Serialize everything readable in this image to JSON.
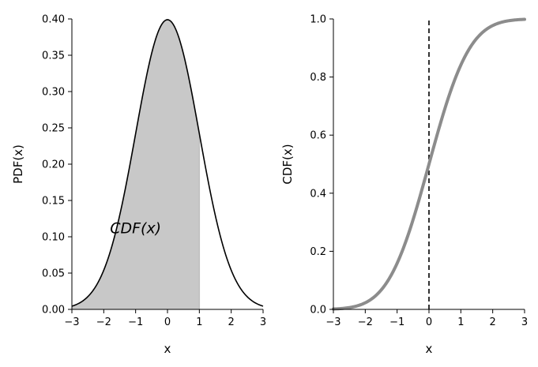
{
  "chart_data": [
    {
      "type": "area",
      "function": "standard normal probability density",
      "x_range": [
        -3,
        3
      ],
      "shade_x_range": [
        -3,
        1
      ],
      "shade_color": "#c8c8c8",
      "line_color": "#000000",
      "xlabel": "x",
      "ylabel": "PDF(x)",
      "xlim": [
        -3,
        3
      ],
      "ylim": [
        0,
        0.4
      ],
      "xticks": [
        -3,
        -2,
        -1,
        0,
        1,
        2,
        3
      ],
      "yticks": [
        0.0,
        0.05,
        0.1,
        0.15,
        0.2,
        0.25,
        0.3,
        0.35,
        0.4
      ],
      "xtick_labels": [
        "−3",
        "−2",
        "−1",
        "0",
        "1",
        "2",
        "3"
      ],
      "ytick_labels": [
        "0.00",
        "0.05",
        "0.10",
        "0.15",
        "0.20",
        "0.25",
        "0.30",
        "0.35",
        "0.40"
      ],
      "annotation": {
        "text": "CDF(x)",
        "x": -1,
        "y": 0.105
      },
      "grid": false
    },
    {
      "type": "line",
      "function": "standard normal cumulative distribution",
      "x_range": [
        -3,
        3
      ],
      "line_color": "#8c8c8c",
      "vline_x": 0,
      "vline_color": "#000000",
      "xlabel": "x",
      "ylabel": "CDF(x)",
      "xlim": [
        -3,
        3
      ],
      "ylim": [
        0,
        1
      ],
      "xticks": [
        -3,
        -2,
        -1,
        0,
        1,
        2,
        3
      ],
      "yticks": [
        0.0,
        0.2,
        0.4,
        0.6,
        0.8,
        1.0
      ],
      "xtick_labels": [
        "−3",
        "−2",
        "−1",
        "0",
        "1",
        "2",
        "3"
      ],
      "ytick_labels": [
        "0.0",
        "0.2",
        "0.4",
        "0.6",
        "0.8",
        "1.0"
      ],
      "grid": false
    }
  ]
}
